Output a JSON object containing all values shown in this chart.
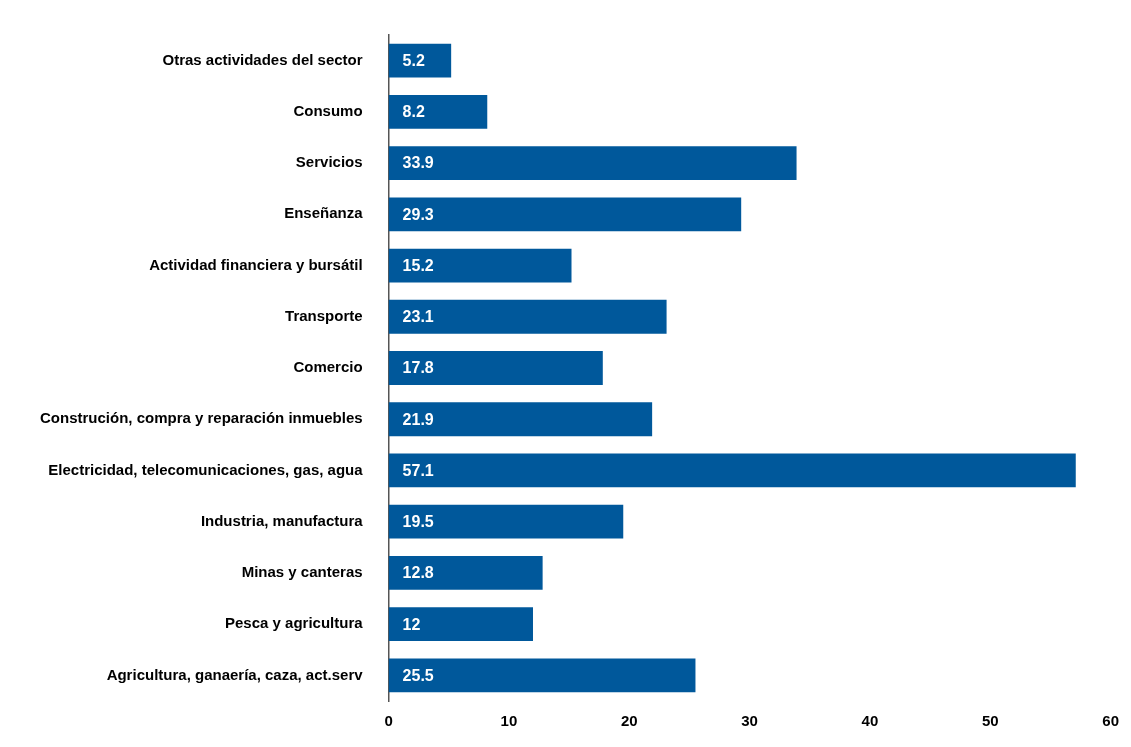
{
  "chart_data": {
    "type": "bar",
    "orientation": "horizontal",
    "categories": [
      "Otras actividades del sector",
      "Consumo",
      "Servicios",
      "Enseñanza",
      "Actividad financiera y bursátil",
      "Transporte",
      "Comercio",
      "Construción, compra y reparación inmuebles",
      "Electricidad, telecomunicaciones, gas, agua",
      "Industria, manufactura",
      "Minas y canteras",
      "Pesca y agricultura",
      "Agricultura, ganaería, caza, act.serv"
    ],
    "values": [
      5.2,
      8.2,
      33.9,
      29.3,
      15.2,
      23.1,
      17.8,
      21.9,
      57.1,
      19.5,
      12.8,
      12,
      25.5
    ],
    "color": "#00589b",
    "xlim": [
      0,
      60
    ],
    "xticks": [
      0,
      10,
      20,
      30,
      40,
      50,
      60
    ],
    "data_labels": true,
    "grid": false,
    "legend": false
  }
}
